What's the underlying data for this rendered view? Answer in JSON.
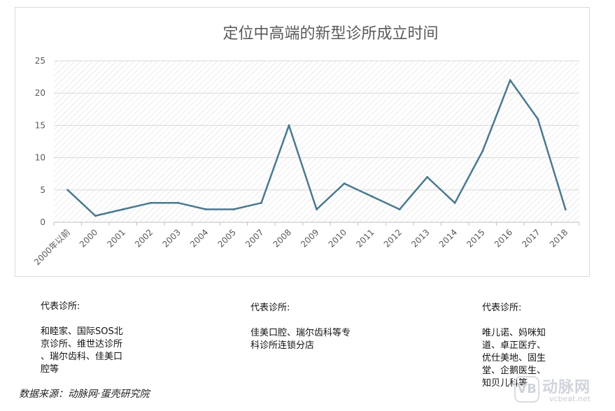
{
  "chart_data": {
    "type": "line",
    "title": "定位中高端的新型诊所成立时间",
    "categories": [
      "2000年以前",
      "2000",
      "2001",
      "2002",
      "2003",
      "2004",
      "2005",
      "2007",
      "2008",
      "2009",
      "2010",
      "2011",
      "2012",
      "2013",
      "2014",
      "2015",
      "2016",
      "2017",
      "2018"
    ],
    "series": [
      {
        "values": [
          5,
          1,
          2,
          3,
          3,
          2,
          2,
          3,
          15,
          2,
          6,
          4,
          2,
          7,
          3,
          11,
          22,
          16,
          2
        ]
      }
    ],
    "ylim": [
      0,
      25
    ],
    "yticks": [
      "0",
      "5",
      "10",
      "15",
      "20",
      "25"
    ],
    "grid": true,
    "line_color": "#4a7990"
  },
  "annotations": [
    {
      "title": "代表诊所:",
      "body": "和睦家、国际SOS北\n京诊所、维世达诊所\n、瑞尔齿科、佳美口\n腔等"
    },
    {
      "title": "代表诊所:",
      "body": "佳美口腔、瑞尔齿科等专\n科诊所连锁分店"
    },
    {
      "title": "代表诊所:",
      "body": "唯儿诺、妈咪知\n道、卓正医疗、\n优仕美地、固生\n堂、企鹅医生、\n知贝儿科等"
    }
  ],
  "source": "数据来源：动脉网·蛋壳研究院",
  "watermark": {
    "name": "动脉网",
    "url": "vcbeat.net",
    "mark": "VB"
  }
}
